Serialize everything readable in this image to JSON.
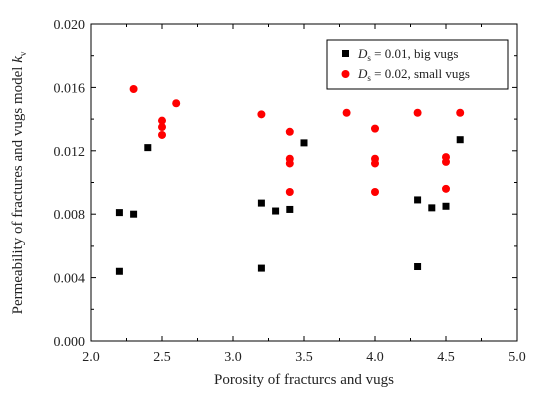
{
  "chart_data": {
    "type": "scatter",
    "title": "",
    "xlabel": "Porosity of fracturcs and vugs",
    "ylabel_main": "Permeability of fractures and vugs model ",
    "ylabel_italic": "k",
    "ylabel_sub": "v",
    "xlim": [
      2.0,
      5.0
    ],
    "ylim": [
      0.0,
      0.02
    ],
    "x_ticks": [
      "2.0",
      "2.5",
      "3.0",
      "3.5",
      "4.0",
      "4.5",
      "5.0"
    ],
    "y_ticks": [
      "0.000",
      "0.004",
      "0.008",
      "0.012",
      "0.016",
      "0.020"
    ],
    "grid": false,
    "legend_position": "top-right",
    "series": [
      {
        "name": "D_s = 0.01, big vugs",
        "legend_italic": "D",
        "legend_sub": "s",
        "legend_rest": " = 0.01, big vugs",
        "marker": "square",
        "color": "#000000",
        "points": [
          [
            2.2,
            0.0081
          ],
          [
            2.2,
            0.0044
          ],
          [
            2.3,
            0.008
          ],
          [
            2.4,
            0.0122
          ],
          [
            3.2,
            0.0087
          ],
          [
            3.2,
            0.0046
          ],
          [
            3.3,
            0.0082
          ],
          [
            3.4,
            0.0083
          ],
          [
            3.5,
            0.0125
          ],
          [
            4.3,
            0.0089
          ],
          [
            4.3,
            0.0047
          ],
          [
            4.4,
            0.0084
          ],
          [
            4.5,
            0.0085
          ],
          [
            4.6,
            0.0127
          ]
        ]
      },
      {
        "name": "D_s = 0.02, small vugs",
        "legend_italic": "D",
        "legend_sub": "s",
        "legend_rest": " = 0.02, small vugs",
        "marker": "circle",
        "color": "#ff0000",
        "points": [
          [
            2.3,
            0.0159
          ],
          [
            2.5,
            0.0139
          ],
          [
            2.5,
            0.0135
          ],
          [
            2.5,
            0.013
          ],
          [
            2.6,
            0.015
          ],
          [
            3.2,
            0.0143
          ],
          [
            3.4,
            0.0132
          ],
          [
            3.4,
            0.0115
          ],
          [
            3.4,
            0.0112
          ],
          [
            3.4,
            0.0094
          ],
          [
            3.8,
            0.0144
          ],
          [
            4.0,
            0.0134
          ],
          [
            4.0,
            0.0115
          ],
          [
            4.0,
            0.0112
          ],
          [
            4.0,
            0.0094
          ],
          [
            4.3,
            0.0144
          ],
          [
            4.5,
            0.0116
          ],
          [
            4.5,
            0.0113
          ],
          [
            4.5,
            0.0096
          ],
          [
            4.6,
            0.0144
          ]
        ]
      }
    ]
  }
}
